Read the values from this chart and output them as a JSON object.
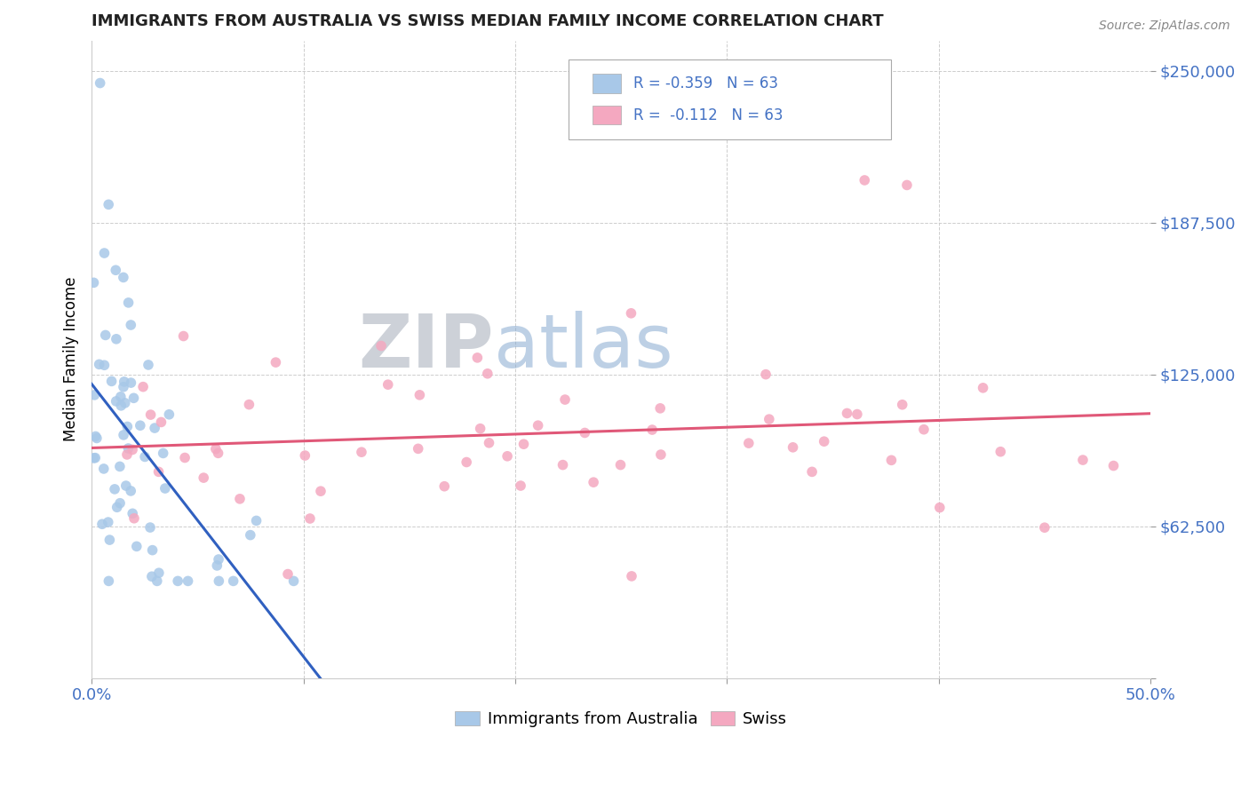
{
  "title": "IMMIGRANTS FROM AUSTRALIA VS SWISS MEDIAN FAMILY INCOME CORRELATION CHART",
  "source": "Source: ZipAtlas.com",
  "ylabel": "Median Family Income",
  "xlim": [
    0.0,
    0.5
  ],
  "ylim": [
    0,
    262500
  ],
  "yticks": [
    0,
    62500,
    125000,
    187500,
    250000
  ],
  "ytick_labels": [
    "",
    "$62,500",
    "$125,000",
    "$187,500",
    "$250,000"
  ],
  "xticks": [
    0.0,
    0.1,
    0.2,
    0.3,
    0.4,
    0.5
  ],
  "xtick_labels": [
    "0.0%",
    "",
    "",
    "",
    "",
    "50.0%"
  ],
  "legend_label_1": "Immigrants from Australia",
  "legend_label_2": "Swiss",
  "blue_color": "#a8c8e8",
  "pink_color": "#f4a8c0",
  "trendline_blue_color": "#3060c0",
  "trendline_pink_color": "#e05878",
  "tick_label_color": "#4472c4",
  "watermark_zip_color": "#b0b8c8",
  "watermark_atlas_color": "#90b8d8",
  "blue_R": -0.359,
  "pink_R": -0.112,
  "N": 63,
  "legend_R1": "R = -0.359   N = 63",
  "legend_R2": "R =  -0.112   N = 63"
}
